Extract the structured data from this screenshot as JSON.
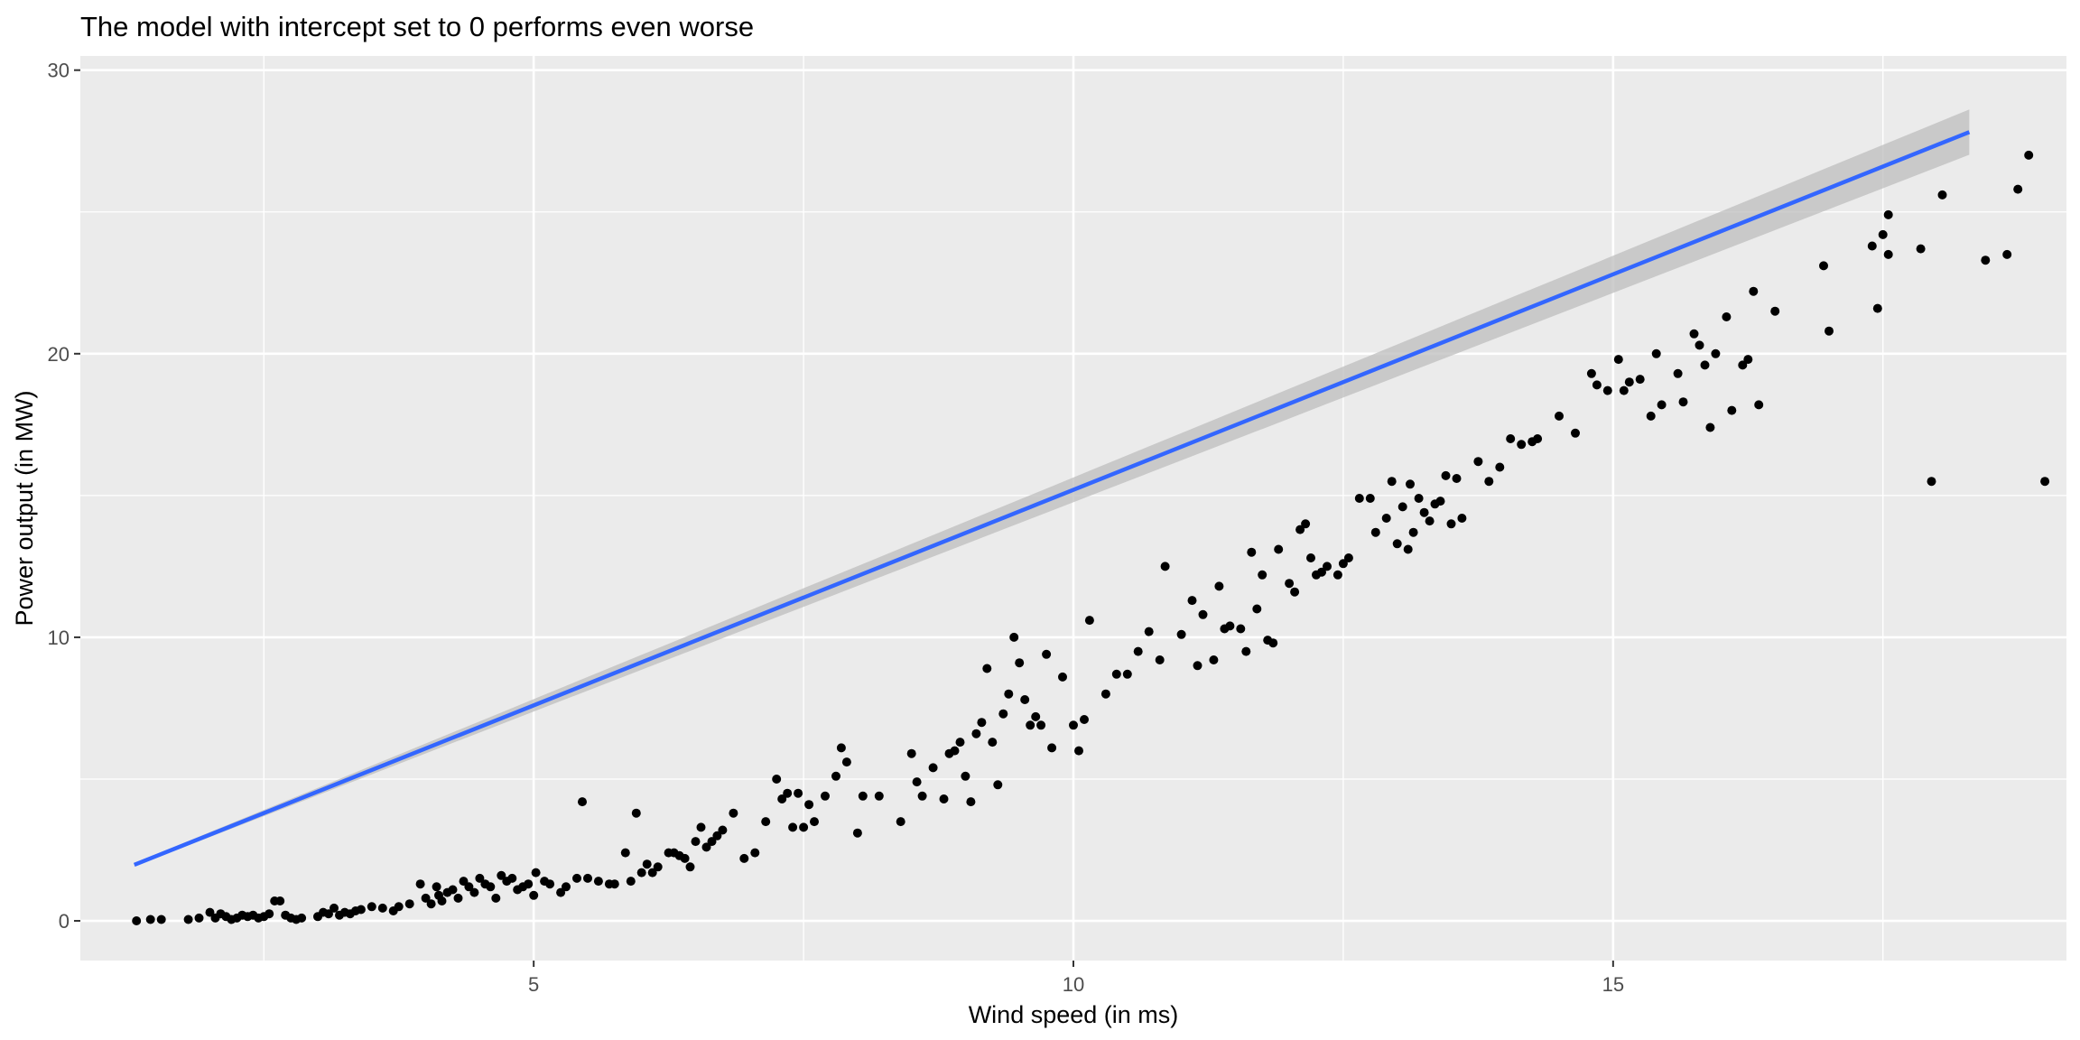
{
  "chart_data": {
    "type": "scatter",
    "title": "The model with intercept set to 0 performs even worse",
    "xlabel": "Wind speed (in ms)",
    "ylabel": "Power output (in MW)",
    "xlim": [
      0.8,
      19.2
    ],
    "ylim": [
      -1.4,
      30.5
    ],
    "x_ticks": [
      5,
      10,
      15
    ],
    "x_tick_labels": [
      "5",
      "10",
      "15"
    ],
    "x_minor_ticks": [
      2.5,
      7.5,
      12.5,
      17.5
    ],
    "y_ticks": [
      0,
      10,
      20,
      30
    ],
    "y_tick_labels": [
      "0",
      "10",
      "20",
      "30"
    ],
    "y_minor_ticks": [
      5,
      15,
      25
    ],
    "grid": true,
    "panel_color": "#ebebeb",
    "grid_color": "#ffffff",
    "point_color": "#000000",
    "line_color": "#3366ff",
    "ribbon_color": "#bebebe",
    "fit": {
      "intercept": 0,
      "slope": 1.52,
      "x_range": [
        1.3,
        18.3
      ],
      "ci_half_width_at_x_max": 0.8
    },
    "points": [
      [
        1.32,
        0.0
      ],
      [
        1.45,
        0.05
      ],
      [
        1.55,
        0.05
      ],
      [
        1.8,
        0.05
      ],
      [
        1.9,
        0.1
      ],
      [
        2.0,
        0.3
      ],
      [
        2.05,
        0.1
      ],
      [
        2.1,
        0.25
      ],
      [
        2.15,
        0.15
      ],
      [
        2.2,
        0.05
      ],
      [
        2.25,
        0.1
      ],
      [
        2.3,
        0.2
      ],
      [
        2.35,
        0.15
      ],
      [
        2.4,
        0.2
      ],
      [
        2.45,
        0.1
      ],
      [
        2.5,
        0.15
      ],
      [
        2.55,
        0.25
      ],
      [
        2.6,
        0.7
      ],
      [
        2.65,
        0.7
      ],
      [
        2.7,
        0.2
      ],
      [
        2.75,
        0.1
      ],
      [
        2.8,
        0.05
      ],
      [
        2.85,
        0.1
      ],
      [
        3.0,
        0.15
      ],
      [
        3.05,
        0.3
      ],
      [
        3.1,
        0.25
      ],
      [
        3.15,
        0.45
      ],
      [
        3.2,
        0.2
      ],
      [
        3.25,
        0.3
      ],
      [
        3.3,
        0.25
      ],
      [
        3.35,
        0.35
      ],
      [
        3.4,
        0.4
      ],
      [
        3.5,
        0.5
      ],
      [
        3.6,
        0.45
      ],
      [
        3.7,
        0.35
      ],
      [
        3.75,
        0.5
      ],
      [
        3.85,
        0.6
      ],
      [
        3.95,
        1.3
      ],
      [
        4.0,
        0.8
      ],
      [
        4.05,
        0.6
      ],
      [
        4.1,
        1.2
      ],
      [
        4.12,
        0.9
      ],
      [
        4.15,
        0.7
      ],
      [
        4.2,
        1.0
      ],
      [
        4.25,
        1.1
      ],
      [
        4.3,
        0.8
      ],
      [
        4.35,
        1.4
      ],
      [
        4.4,
        1.2
      ],
      [
        4.45,
        1.0
      ],
      [
        4.5,
        1.5
      ],
      [
        4.55,
        1.3
      ],
      [
        4.6,
        1.2
      ],
      [
        4.65,
        0.8
      ],
      [
        4.7,
        1.6
      ],
      [
        4.75,
        1.4
      ],
      [
        4.8,
        1.5
      ],
      [
        4.85,
        1.1
      ],
      [
        4.9,
        1.2
      ],
      [
        4.95,
        1.3
      ],
      [
        5.0,
        0.9
      ],
      [
        5.02,
        1.7
      ],
      [
        5.1,
        1.4
      ],
      [
        5.15,
        1.3
      ],
      [
        5.25,
        1.0
      ],
      [
        5.3,
        1.2
      ],
      [
        5.4,
        1.5
      ],
      [
        5.45,
        4.2
      ],
      [
        5.5,
        1.5
      ],
      [
        5.6,
        1.4
      ],
      [
        5.7,
        1.3
      ],
      [
        5.75,
        1.3
      ],
      [
        5.85,
        2.4
      ],
      [
        5.9,
        1.4
      ],
      [
        5.95,
        3.8
      ],
      [
        6.0,
        1.7
      ],
      [
        6.05,
        2.0
      ],
      [
        6.1,
        1.7
      ],
      [
        6.15,
        1.9
      ],
      [
        6.25,
        2.4
      ],
      [
        6.3,
        2.4
      ],
      [
        6.35,
        2.3
      ],
      [
        6.4,
        2.2
      ],
      [
        6.45,
        1.9
      ],
      [
        6.5,
        2.8
      ],
      [
        6.55,
        3.3
      ],
      [
        6.6,
        2.6
      ],
      [
        6.65,
        2.8
      ],
      [
        6.7,
        3.0
      ],
      [
        6.75,
        3.2
      ],
      [
        6.85,
        3.8
      ],
      [
        6.95,
        2.2
      ],
      [
        7.05,
        2.4
      ],
      [
        7.15,
        3.5
      ],
      [
        7.25,
        5.0
      ],
      [
        7.3,
        4.3
      ],
      [
        7.35,
        4.5
      ],
      [
        7.4,
        3.3
      ],
      [
        7.45,
        4.5
      ],
      [
        7.5,
        3.3
      ],
      [
        7.55,
        4.1
      ],
      [
        7.6,
        3.5
      ],
      [
        7.7,
        4.4
      ],
      [
        7.8,
        5.1
      ],
      [
        7.85,
        6.1
      ],
      [
        7.9,
        5.6
      ],
      [
        8.0,
        3.1
      ],
      [
        8.05,
        4.4
      ],
      [
        8.2,
        4.4
      ],
      [
        8.4,
        3.5
      ],
      [
        8.5,
        5.9
      ],
      [
        8.55,
        4.9
      ],
      [
        8.6,
        4.4
      ],
      [
        8.7,
        5.4
      ],
      [
        8.8,
        4.3
      ],
      [
        8.85,
        5.9
      ],
      [
        8.9,
        6.0
      ],
      [
        8.95,
        6.3
      ],
      [
        9.0,
        5.1
      ],
      [
        9.05,
        4.2
      ],
      [
        9.1,
        6.6
      ],
      [
        9.15,
        7.0
      ],
      [
        9.2,
        8.9
      ],
      [
        9.25,
        6.3
      ],
      [
        9.3,
        4.8
      ],
      [
        9.35,
        7.3
      ],
      [
        9.4,
        8.0
      ],
      [
        9.45,
        10.0
      ],
      [
        9.5,
        9.1
      ],
      [
        9.55,
        7.8
      ],
      [
        9.6,
        6.9
      ],
      [
        9.65,
        7.2
      ],
      [
        9.7,
        6.9
      ],
      [
        9.75,
        9.4
      ],
      [
        9.8,
        6.1
      ],
      [
        9.9,
        8.6
      ],
      [
        10.0,
        6.9
      ],
      [
        10.05,
        6.0
      ],
      [
        10.1,
        7.1
      ],
      [
        10.15,
        10.6
      ],
      [
        10.3,
        8.0
      ],
      [
        10.4,
        8.7
      ],
      [
        10.5,
        8.7
      ],
      [
        10.6,
        9.5
      ],
      [
        10.7,
        10.2
      ],
      [
        10.8,
        9.2
      ],
      [
        10.85,
        12.5
      ],
      [
        11.0,
        10.1
      ],
      [
        11.1,
        11.3
      ],
      [
        11.15,
        9.0
      ],
      [
        11.2,
        10.8
      ],
      [
        11.3,
        9.2
      ],
      [
        11.35,
        11.8
      ],
      [
        11.4,
        10.3
      ],
      [
        11.45,
        10.4
      ],
      [
        11.55,
        10.3
      ],
      [
        11.6,
        9.5
      ],
      [
        11.65,
        13.0
      ],
      [
        11.7,
        11.0
      ],
      [
        11.75,
        12.2
      ],
      [
        11.8,
        9.9
      ],
      [
        11.85,
        9.8
      ],
      [
        11.9,
        13.1
      ],
      [
        12.0,
        11.9
      ],
      [
        12.05,
        11.6
      ],
      [
        12.1,
        13.8
      ],
      [
        12.15,
        14.0
      ],
      [
        12.2,
        12.8
      ],
      [
        12.25,
        12.2
      ],
      [
        12.3,
        12.3
      ],
      [
        12.35,
        12.5
      ],
      [
        12.45,
        12.2
      ],
      [
        12.5,
        12.6
      ],
      [
        12.55,
        12.8
      ],
      [
        12.65,
        14.9
      ],
      [
        12.75,
        14.9
      ],
      [
        12.8,
        13.7
      ],
      [
        12.9,
        14.2
      ],
      [
        12.95,
        15.5
      ],
      [
        13.0,
        13.3
      ],
      [
        13.05,
        14.6
      ],
      [
        13.1,
        13.1
      ],
      [
        13.12,
        15.4
      ],
      [
        13.15,
        13.7
      ],
      [
        13.2,
        14.9
      ],
      [
        13.25,
        14.4
      ],
      [
        13.3,
        14.1
      ],
      [
        13.35,
        14.7
      ],
      [
        13.4,
        14.8
      ],
      [
        13.45,
        15.7
      ],
      [
        13.5,
        14.0
      ],
      [
        13.55,
        15.6
      ],
      [
        13.6,
        14.2
      ],
      [
        13.75,
        16.2
      ],
      [
        13.85,
        15.5
      ],
      [
        13.95,
        16.0
      ],
      [
        14.05,
        17.0
      ],
      [
        14.15,
        16.8
      ],
      [
        14.25,
        16.9
      ],
      [
        14.3,
        17.0
      ],
      [
        14.5,
        17.8
      ],
      [
        14.65,
        17.2
      ],
      [
        14.8,
        19.3
      ],
      [
        14.85,
        18.9
      ],
      [
        14.95,
        18.7
      ],
      [
        15.05,
        19.8
      ],
      [
        15.1,
        18.7
      ],
      [
        15.15,
        19.0
      ],
      [
        15.25,
        19.1
      ],
      [
        15.35,
        17.8
      ],
      [
        15.4,
        20.0
      ],
      [
        15.45,
        18.2
      ],
      [
        15.6,
        19.3
      ],
      [
        15.65,
        18.3
      ],
      [
        15.75,
        20.7
      ],
      [
        15.8,
        20.3
      ],
      [
        15.85,
        19.6
      ],
      [
        15.9,
        17.4
      ],
      [
        15.95,
        20.0
      ],
      [
        16.05,
        21.3
      ],
      [
        16.1,
        18.0
      ],
      [
        16.2,
        19.6
      ],
      [
        16.25,
        19.8
      ],
      [
        16.3,
        22.2
      ],
      [
        16.35,
        18.2
      ],
      [
        16.5,
        21.5
      ],
      [
        16.95,
        23.1
      ],
      [
        17.0,
        20.8
      ],
      [
        17.4,
        23.8
      ],
      [
        17.45,
        21.6
      ],
      [
        17.5,
        24.2
      ],
      [
        17.55,
        24.9
      ],
      [
        17.55,
        23.5
      ],
      [
        17.85,
        23.7
      ],
      [
        17.95,
        15.5
      ],
      [
        18.05,
        25.6
      ],
      [
        18.45,
        23.3
      ],
      [
        18.65,
        23.5
      ],
      [
        18.75,
        25.8
      ],
      [
        18.85,
        27.0
      ],
      [
        19.0,
        15.5
      ]
    ]
  }
}
